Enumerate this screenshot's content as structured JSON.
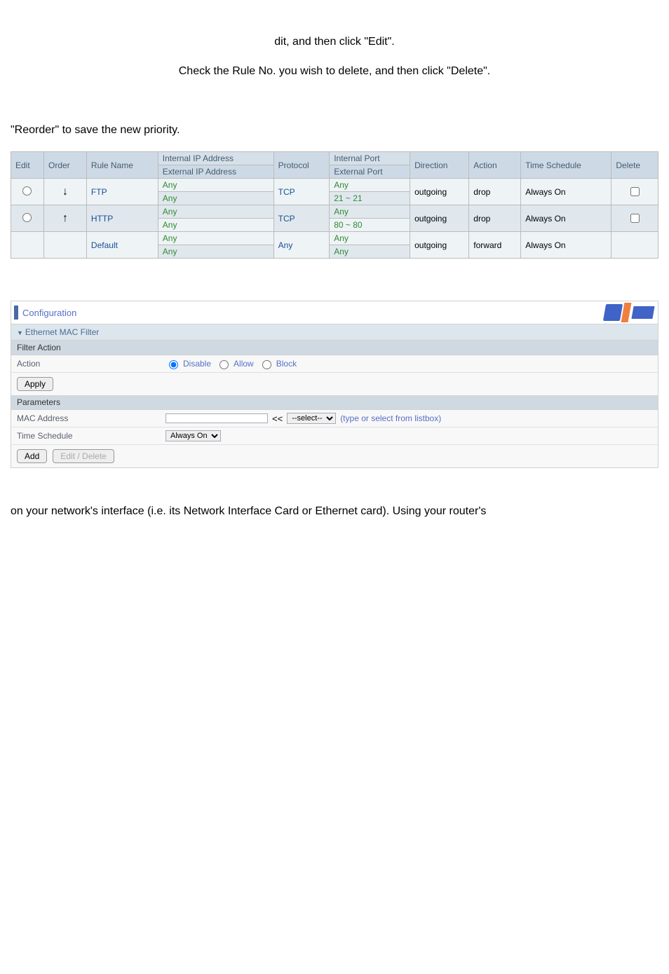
{
  "text": {
    "dit_line": "dit, and then click \"Edit\".",
    "delete_line": "Check the Rule No. you wish to delete, and then click \"Delete\".",
    "reorder_line": "\"Reorder\" to save the new priority.",
    "mac_intro": "on your network's interface (i.e. its Network Interface Card or Ethernet card). Using your router's"
  },
  "rules_table": {
    "headers": {
      "edit": "Edit",
      "order": "Order",
      "rule_name": "Rule Name",
      "internal_ip": "Internal IP Address",
      "external_ip": "External IP Address",
      "protocol": "Protocol",
      "internal_port": "Internal Port",
      "external_port": "External Port",
      "direction": "Direction",
      "action": "Action",
      "time": "Time Schedule",
      "delete": "Delete"
    },
    "rows": [
      {
        "order_arrow": "↓",
        "rule_name": "FTP",
        "int_ip": "Any",
        "ext_ip": "Any",
        "protocol": "TCP",
        "int_port": "Any",
        "ext_port": "21 ~ 21",
        "direction": "outgoing",
        "action": "drop",
        "time": "Always On",
        "has_radio": true,
        "has_delete": true
      },
      {
        "order_arrow": "↑",
        "rule_name": "HTTP",
        "int_ip": "Any",
        "ext_ip": "Any",
        "protocol": "TCP",
        "int_port": "Any",
        "ext_port": "80 ~ 80",
        "direction": "outgoing",
        "action": "drop",
        "time": "Always On",
        "has_radio": true,
        "has_delete": true
      },
      {
        "order_arrow": "",
        "rule_name": "Default",
        "int_ip": "Any",
        "ext_ip": "Any",
        "protocol": "Any",
        "int_port": "Any",
        "ext_port": "Any",
        "direction": "outgoing",
        "action": "forward",
        "time": "Always On",
        "has_radio": false,
        "has_delete": false
      }
    ]
  },
  "config": {
    "title": "Configuration",
    "section": "Ethernet MAC Filter",
    "filter_action_hdr": "Filter Action",
    "action_label": "Action",
    "radio_disable": "Disable",
    "radio_allow": "Allow",
    "radio_block": "Block",
    "apply_btn": "Apply",
    "parameters_hdr": "Parameters",
    "mac_label": "MAC Address",
    "select_placeholder": "--select--",
    "listbox_hint": "(type or select from listbox)",
    "time_label": "Time Schedule",
    "time_value": "Always On",
    "add_btn": "Add",
    "editdel_btn": "Edit / Delete",
    "shift_symbol": "<<"
  }
}
